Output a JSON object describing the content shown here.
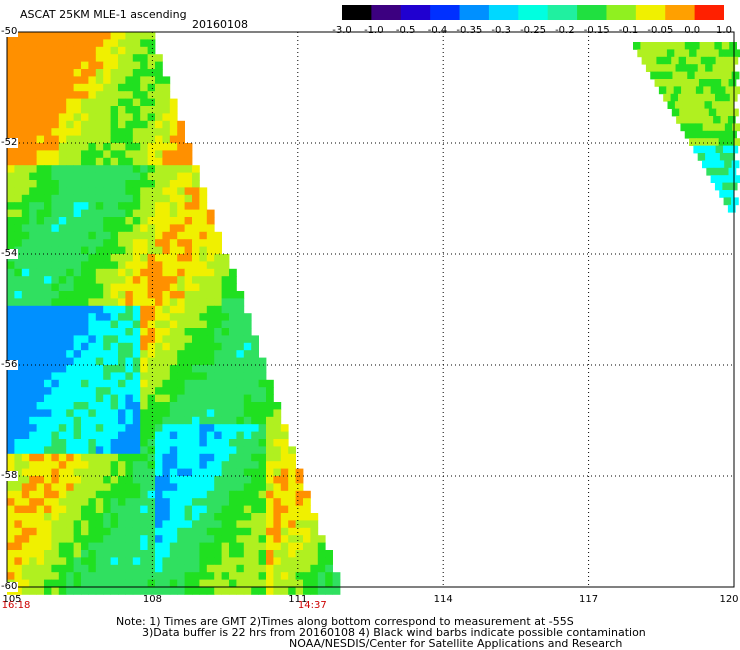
{
  "header": {
    "title": "ASCAT 25KM MLE-1 ascending",
    "date": "20160108"
  },
  "colorbar": {
    "labels": [
      "-3.0",
      "-1.0",
      "-0.5",
      "-0.4",
      "-0.35",
      "-0.3",
      "-0.25",
      "-0.2",
      "-0.15",
      "-0.1",
      "-0.05",
      "0.0",
      "1.0"
    ],
    "colors": [
      "#000000",
      "#3c0080",
      "#2000d0",
      "#0030ff",
      "#0090ff",
      "#00d8ff",
      "#00ffe0",
      "#20f0a0",
      "#20e040",
      "#90f020",
      "#f0f000",
      "#ffa000",
      "#ff2000"
    ]
  },
  "map": {
    "lat_labels": [
      "-50",
      "-52",
      "-54",
      "-56",
      "-58",
      "-60"
    ],
    "lon_labels": [
      "105",
      "108",
      "111",
      "114",
      "117",
      "120"
    ],
    "lat_range": [
      -60,
      -50
    ],
    "lon_range": [
      105,
      120
    ]
  },
  "times": [
    {
      "label": "16:18",
      "lon": 105
    },
    {
      "label": "14:37",
      "lon": 111.3
    }
  ],
  "notes": {
    "line1": "Note: 1) Times are GMT 2)Times along bottom correspond to measurement at -55S",
    "line2": "3)Data buffer is 22 hrs from 20160108 4) Black wind barbs indicate possible contamination",
    "line3": "NOAA/NESDIS/Center for Satellite Applications and Research"
  }
}
